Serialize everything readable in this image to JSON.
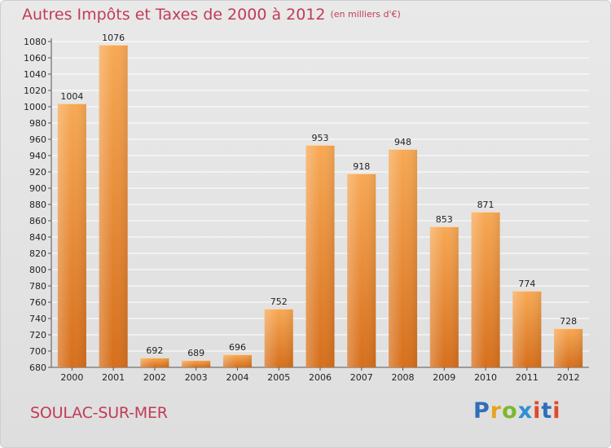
{
  "title": "Autres Impôts et Taxes de 2000 à 2012",
  "subtitle": "(en milliers d'€)",
  "commune": "SOULAC-SUR-MER",
  "logo": "Proxiti",
  "colors": {
    "title": "#c23b57",
    "bar_top": "#f7a955",
    "bar_bottom": "#d66f1c",
    "grid": "#ffffff"
  },
  "chart_data": {
    "type": "bar",
    "categories": [
      "2000",
      "2001",
      "2002",
      "2003",
      "2004",
      "2005",
      "2006",
      "2007",
      "2008",
      "2009",
      "2010",
      "2011",
      "2012"
    ],
    "values": [
      1004,
      1076,
      692,
      689,
      696,
      752,
      953,
      918,
      948,
      853,
      871,
      774,
      728
    ],
    "title": "Autres Impôts et Taxes de 2000 à 2012",
    "xlabel": "",
    "ylabel": "",
    "ylim": [
      680,
      1080
    ],
    "yticks": [
      680,
      700,
      720,
      740,
      760,
      780,
      800,
      820,
      840,
      860,
      880,
      900,
      920,
      940,
      960,
      980,
      1000,
      1020,
      1040,
      1060,
      1080
    ],
    "grid": true,
    "data_labels": true
  }
}
